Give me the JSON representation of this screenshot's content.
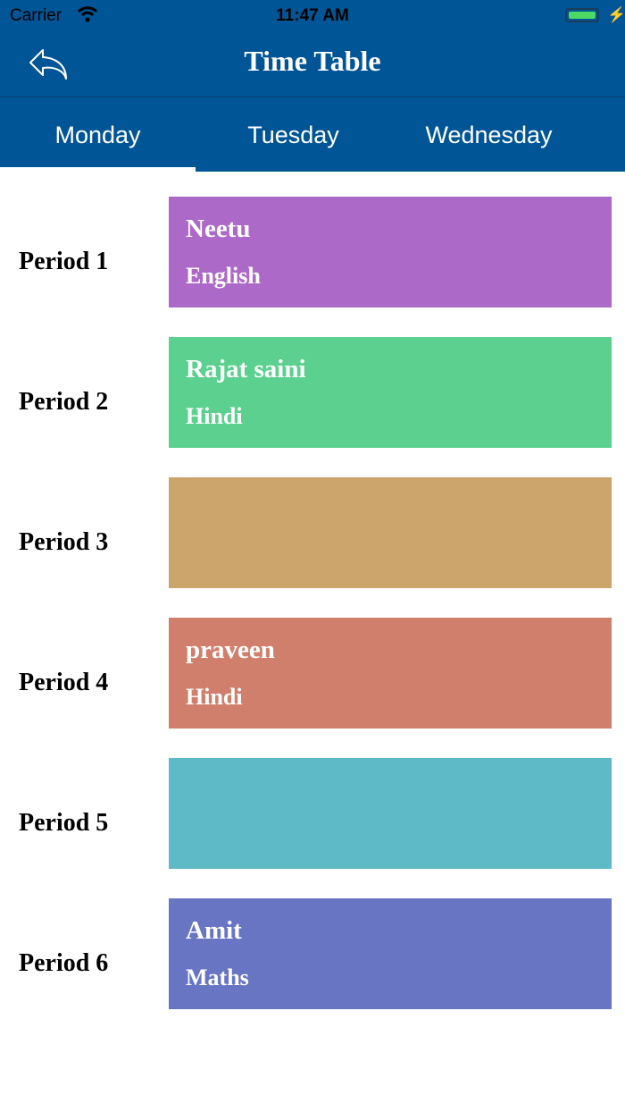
{
  "status_bar": {
    "carrier": "Carrier",
    "time": "11:47 AM",
    "battery_level": 1.0,
    "charging": true
  },
  "header": {
    "title": "Time Table",
    "back_icon": "reply-arrow-icon"
  },
  "tabs": [
    {
      "label": "Monday",
      "active": true
    },
    {
      "label": "Tuesday",
      "active": false
    },
    {
      "label": "Wednesday",
      "active": false
    }
  ],
  "colors": {
    "header": "#005596"
  },
  "periods": [
    {
      "label": "Period 1",
      "teacher": "Neetu",
      "subject": "English",
      "color": "#ad69c8"
    },
    {
      "label": "Period 2",
      "teacher": "Rajat saini",
      "subject": "Hindi",
      "color": "#5cd08f"
    },
    {
      "label": "Period 3",
      "teacher": "",
      "subject": "",
      "color": "#cca56c"
    },
    {
      "label": "Period 4",
      "teacher": "praveen",
      "subject": "Hindi",
      "color": "#d07f6d"
    },
    {
      "label": "Period 5",
      "teacher": "",
      "subject": "",
      "color": "#5fbac8"
    },
    {
      "label": "Period 6",
      "teacher": "Amit",
      "subject": "Maths",
      "color": "#6875c3"
    }
  ]
}
